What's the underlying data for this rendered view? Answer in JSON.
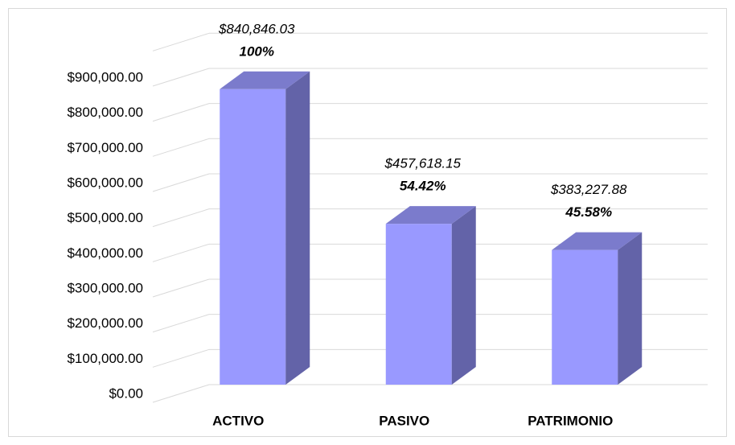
{
  "chart_data": {
    "type": "bar3d",
    "categories": [
      "ACTIVO",
      "PASIVO",
      "PATRIMONIO"
    ],
    "values": [
      840846.03,
      457618.15,
      383227.88
    ],
    "value_labels": [
      "$840,846.03",
      "$457,618.15",
      "$383,227.88"
    ],
    "percent_labels": [
      "100%",
      "54.42%",
      "45.58%"
    ],
    "colors": {
      "front": "#9999ff",
      "side": "#6363a8",
      "top": "#7b7bcc"
    },
    "ylim": [
      0,
      1000000
    ],
    "yticks": [
      {
        "value": 0,
        "label": "$0.00"
      },
      {
        "value": 100000,
        "label": "$100,000.00"
      },
      {
        "value": 200000,
        "label": "$200,000.00"
      },
      {
        "value": 300000,
        "label": "$300,000.00"
      },
      {
        "value": 400000,
        "label": "$400,000.00"
      },
      {
        "value": 500000,
        "label": "$500,000.00"
      },
      {
        "value": 600000,
        "label": "$600,000.00"
      },
      {
        "value": 700000,
        "label": "$700,000.00"
      },
      {
        "value": 800000,
        "label": "$800,000.00"
      },
      {
        "value": 900000,
        "label": "$900,000.00"
      }
    ],
    "grid": true
  }
}
